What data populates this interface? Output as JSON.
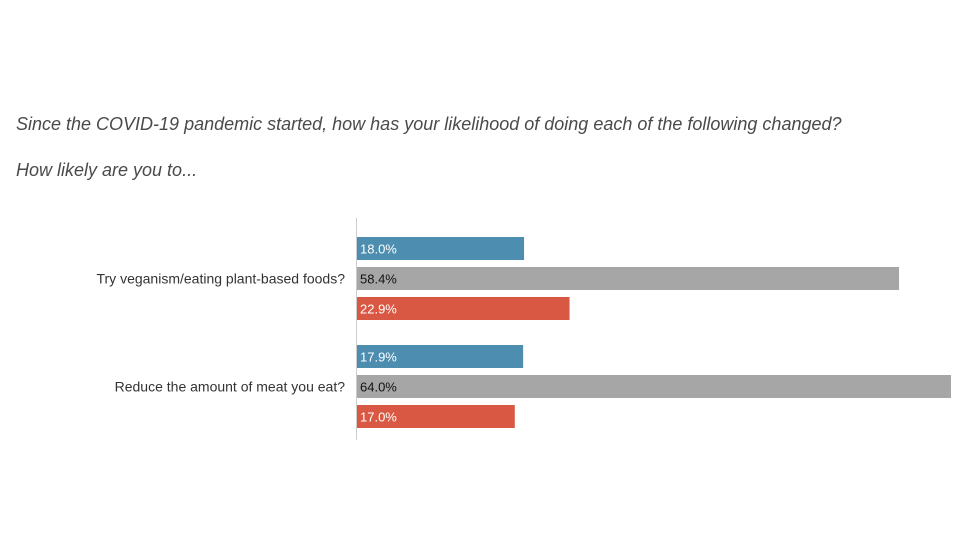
{
  "title": {
    "line1": "Since the COVID-19 pandemic started, how has your likelihood of doing each of the following changed?",
    "line2": "How likely are you to..."
  },
  "chart_data": {
    "type": "bar",
    "orientation": "horizontal",
    "categories": [
      "Try veganism/eating plant-based foods?",
      "Reduce the amount of meat you eat?"
    ],
    "series": [
      {
        "values": [
          18.0,
          17.9
        ],
        "labels": [
          "18.0%",
          "17.9%"
        ],
        "color": "#4c8db0",
        "label_color": "#ffffff"
      },
      {
        "values": [
          58.4,
          64.0
        ],
        "labels": [
          "58.4%",
          "64.0%"
        ],
        "color": "#a6a6a6",
        "label_color": "#111111"
      },
      {
        "values": [
          22.9,
          17.0
        ],
        "labels": [
          "22.9%",
          "17.0%"
        ],
        "color": "#d95843",
        "label_color": "#ffffff"
      }
    ],
    "xlim": [
      0,
      64
    ],
    "grid": false,
    "legend": "none"
  }
}
